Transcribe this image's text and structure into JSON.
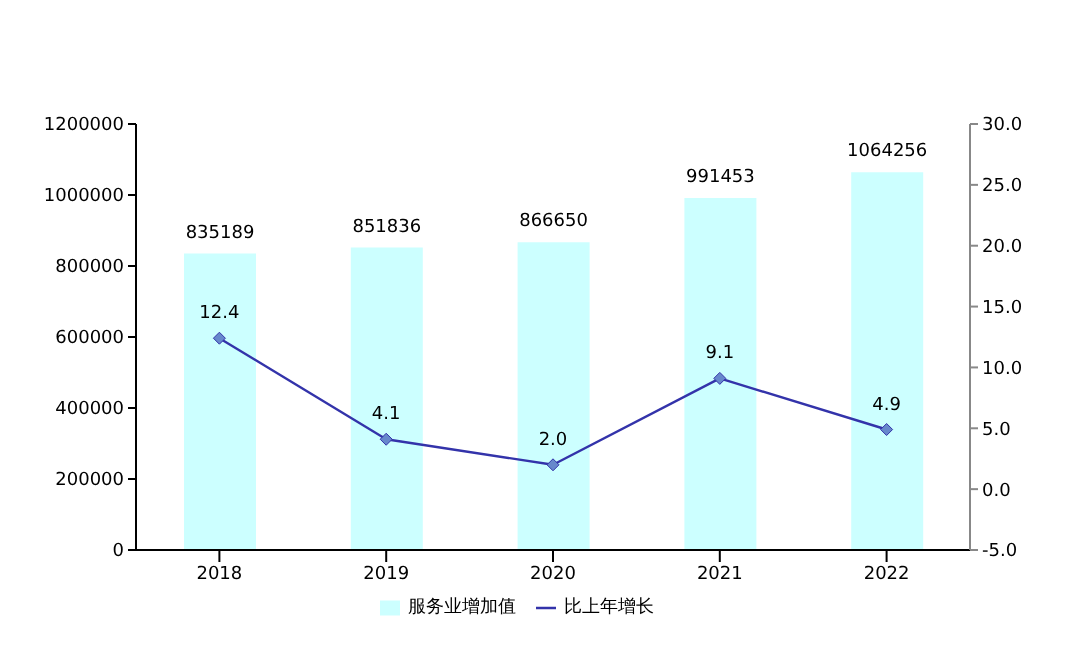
{
  "chart_data": {
    "type": "bar",
    "categories": [
      "2018",
      "2019",
      "2020",
      "2021",
      "2022"
    ],
    "series": [
      {
        "name": "服务业增加值",
        "color": "#ccffff",
        "values": [
          835189,
          851836,
          866650,
          991453,
          1064256
        ]
      },
      {
        "name": "比上年增长",
        "type": "line",
        "axis": "y2",
        "color": "#3333aa",
        "values": [
          12.4,
          4.1,
          2.0,
          9.1,
          4.9
        ],
        "value_labels": [
          "12.4",
          "4.1",
          "2.0",
          "9.1",
          "4.9"
        ]
      }
    ],
    "ylim": [
      0,
      1200000
    ],
    "yticks": [
      0,
      200000,
      400000,
      600000,
      800000,
      1000000,
      1200000
    ],
    "y2lim": [
      -5,
      30
    ],
    "y2ticks": [
      {
        "value": -5,
        "label": "-5.0"
      },
      {
        "value": 0,
        "label": "0.0"
      },
      {
        "value": 5,
        "label": "5.0"
      },
      {
        "value": 10,
        "label": "10.0"
      },
      {
        "value": 15,
        "label": "15.0"
      },
      {
        "value": 20,
        "label": "20.0"
      },
      {
        "value": 25,
        "label": "25.0"
      },
      {
        "value": 30,
        "label": "30.0"
      }
    ],
    "data_labels": true,
    "marker": "diamond",
    "legend": "bottom"
  }
}
